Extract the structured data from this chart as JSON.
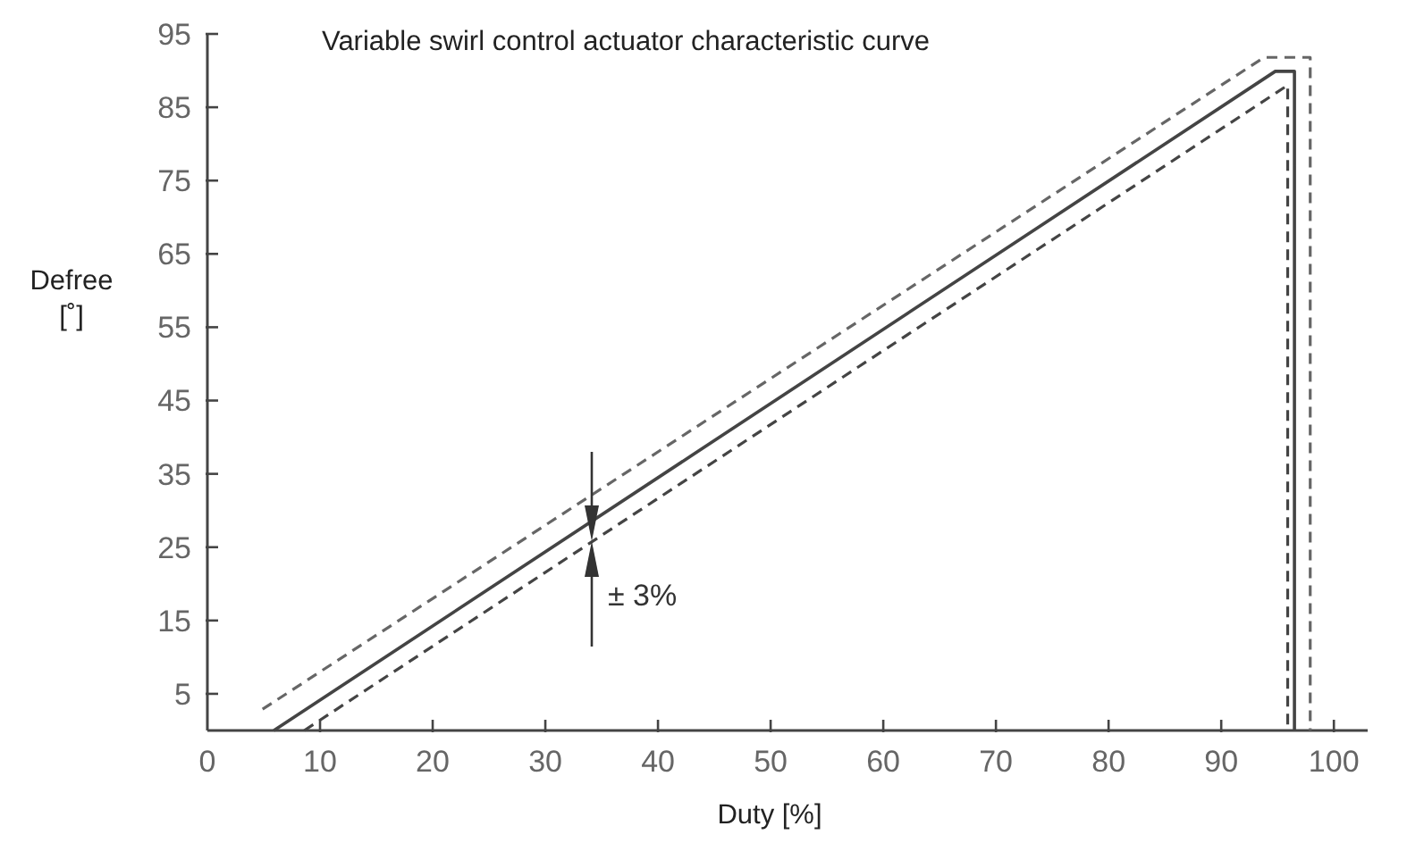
{
  "chart_data": {
    "type": "line",
    "title": "Variable swirl control actuator characteristic curve",
    "xlabel": "Duty [%]",
    "ylabel": "Defree [˚]",
    "xlim": [
      0,
      103
    ],
    "ylim": [
      0,
      95
    ],
    "xticks": [
      {
        "value": 0,
        "label": "0"
      },
      10,
      20,
      30,
      40,
      50,
      60,
      70,
      80,
      90,
      100
    ],
    "yticks": [
      5,
      15,
      25,
      35,
      45,
      55,
      65,
      75,
      85,
      95
    ],
    "grid": false,
    "series": [
      {
        "color": "#444444",
        "line_style": "solid",
        "x": [
          5.9,
          94.8,
          96.5,
          96.5
        ],
        "values": [
          0,
          89.9,
          89.9,
          0
        ]
      },
      {
        "color": "#666666",
        "line_style": "dashed",
        "x": [
          4.9,
          93.8,
          97.9,
          97.9
        ],
        "values": [
          2.9,
          91.8,
          91.8,
          0
        ]
      },
      {
        "color": "#444444",
        "line_style": "dashed",
        "x": [
          8.6,
          95.9,
          95.9
        ],
        "values": [
          0,
          88,
          0
        ]
      }
    ],
    "annotations": [
      "± 3%"
    ]
  }
}
